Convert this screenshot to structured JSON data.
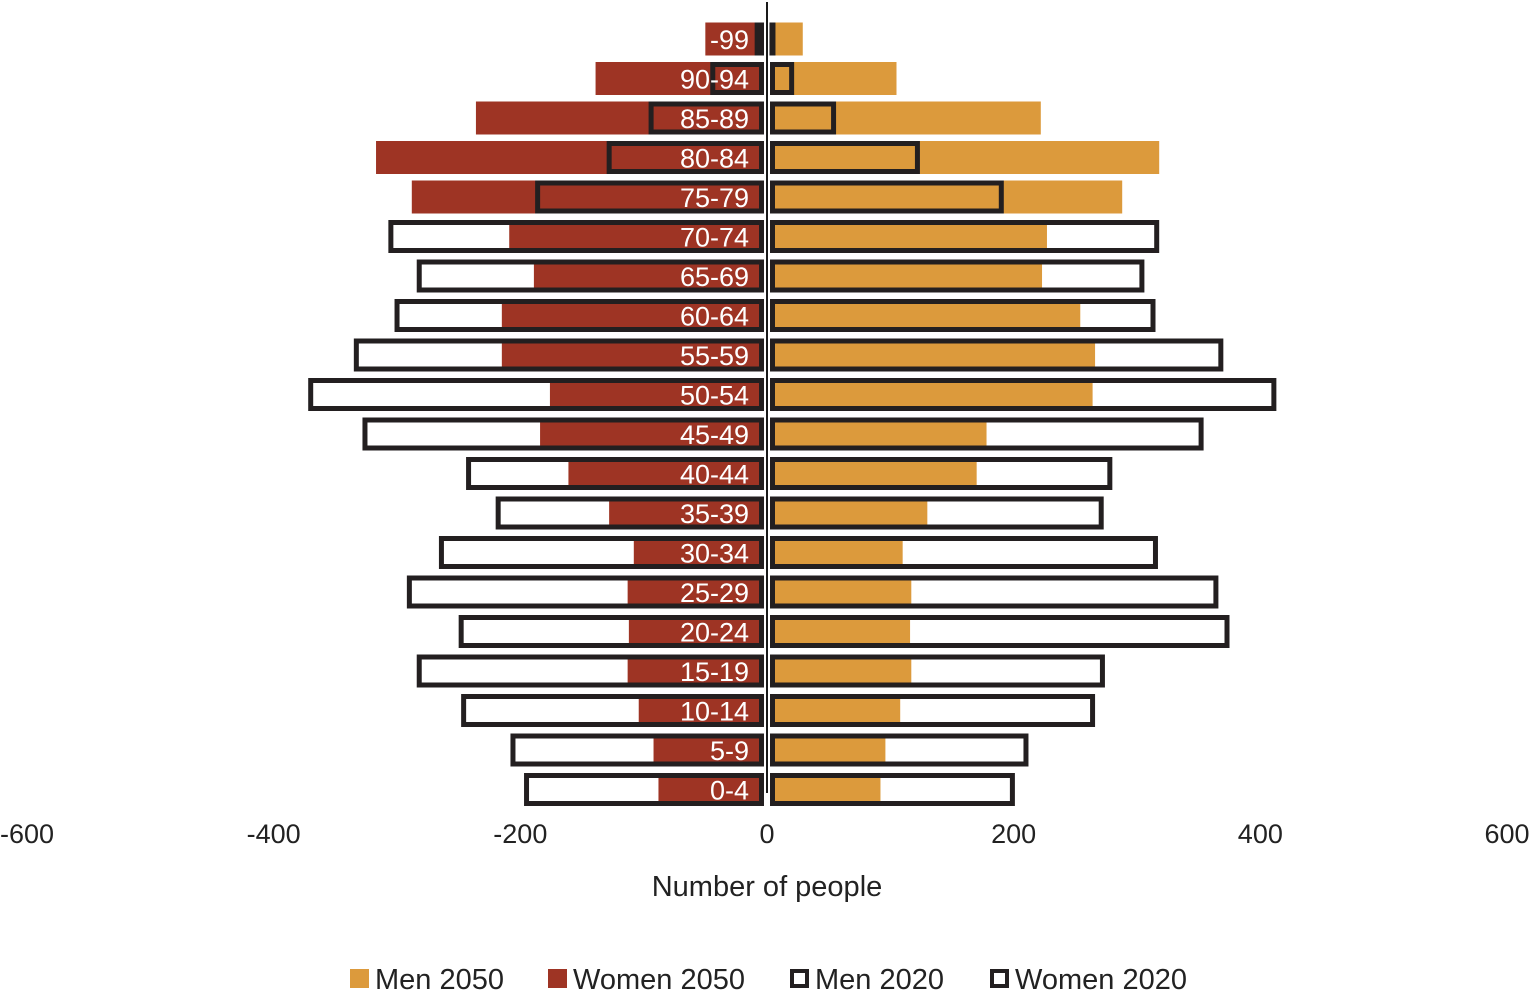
{
  "chart_data": {
    "type": "bar",
    "orientation": "horizontal",
    "categories": [
      "0-4",
      "5-9",
      "10-14",
      "15-19",
      "20-24",
      "25-29",
      "30-34",
      "35-39",
      "40-44",
      "45-49",
      "50-54",
      "55-59",
      "60-64",
      "65-69",
      "70-74",
      "75-79",
      "80-84",
      "85-89",
      "90-94",
      "-99"
    ],
    "series": [
      {
        "name": "Men 2050",
        "side": "right",
        "style": "filled",
        "color": "#dc9a3c",
        "values": [
          92,
          96,
          108,
          117,
          116,
          117,
          110,
          130,
          170,
          178,
          264,
          266,
          254,
          223,
          227,
          288,
          318,
          222,
          105,
          29
        ]
      },
      {
        "name": "Women 2050",
        "side": "left",
        "style": "filled",
        "color": "#9e3424",
        "values": [
          -88,
          -92,
          -104,
          -113,
          -112,
          -113,
          -108,
          -128,
          -161,
          -184,
          -176,
          -215,
          -215,
          -189,
          -209,
          -288,
          -317,
          -236,
          -139,
          -50
        ]
      },
      {
        "name": "Men 2020",
        "side": "right",
        "style": "outline",
        "color": "#231f20",
        "values": [
          201,
          212,
          266,
          274,
          375,
          366,
          317,
          273,
          280,
          354,
          413,
          370,
          315,
          306,
          318,
          192,
          124,
          56,
          22,
          2
        ]
      },
      {
        "name": "Women 2020",
        "side": "left",
        "style": "outline",
        "color": "#231f20",
        "values": [
          -197,
          -208,
          -248,
          -284,
          -250,
          -292,
          -266,
          -220,
          -244,
          -328,
          -372,
          -335,
          -302,
          -284,
          -307,
          -188,
          -130,
          -96,
          -46,
          -10
        ]
      }
    ],
    "xlabel": "Number of people",
    "xlim": [
      -600,
      600
    ],
    "xticks": [
      -600,
      -400,
      -200,
      0,
      200,
      400,
      600
    ],
    "xtick_labels": [
      "-600",
      "-400",
      "-200",
      "0",
      "200",
      "400",
      "600"
    ],
    "legend_position": "bottom",
    "grid": false
  }
}
